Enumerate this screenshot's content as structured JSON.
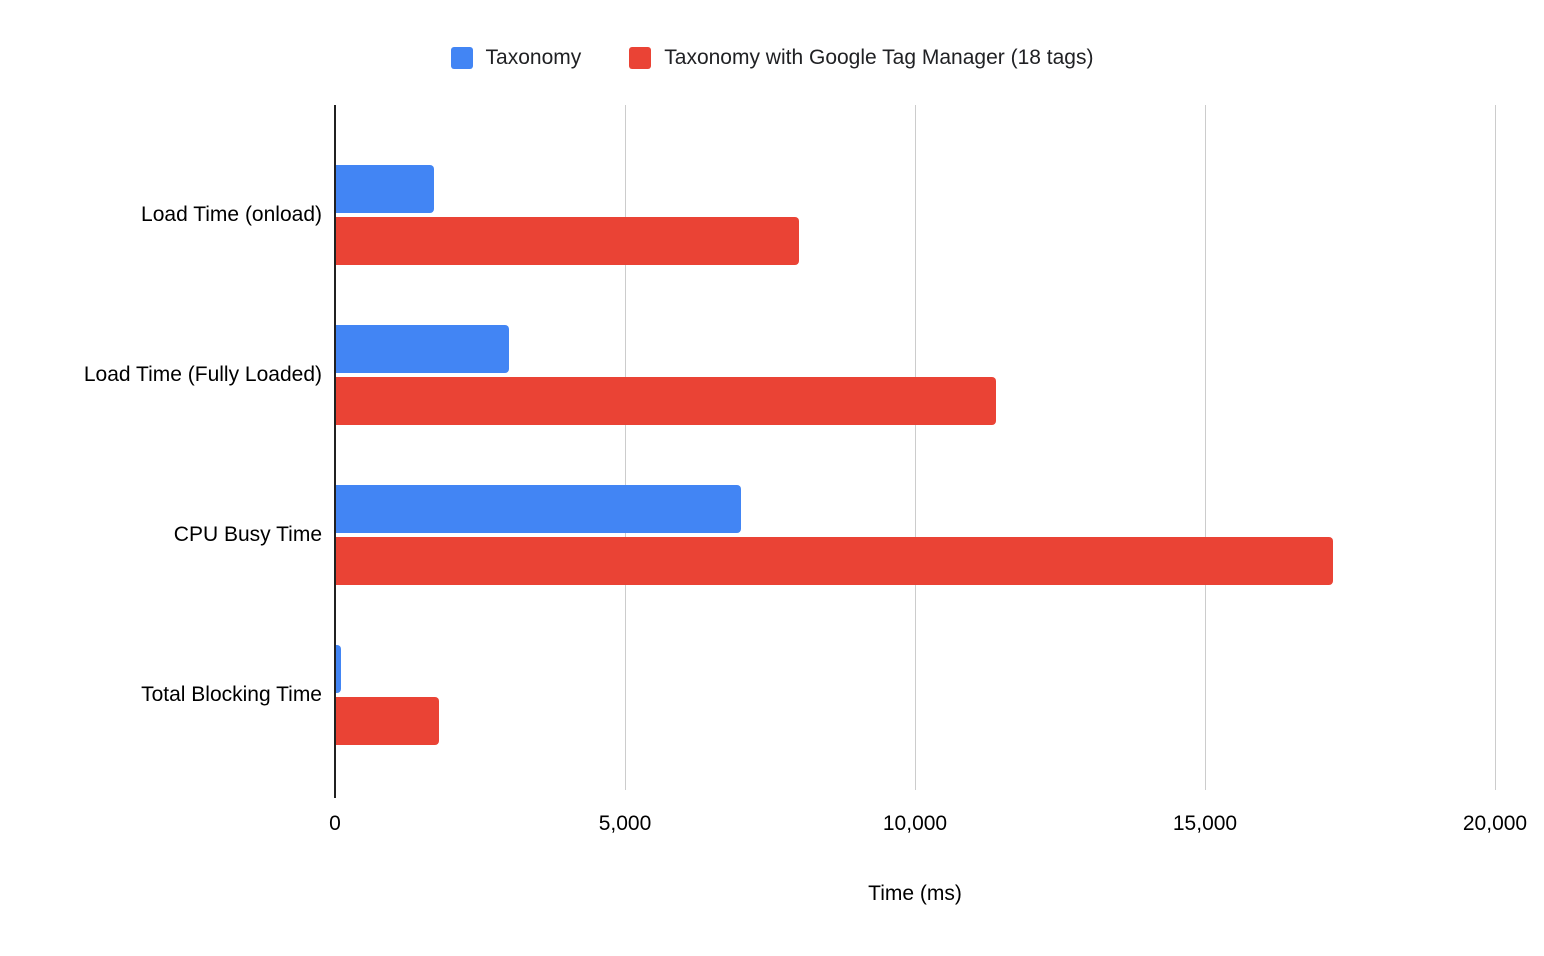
{
  "chart_data": {
    "type": "bar",
    "orientation": "horizontal",
    "title": "",
    "xlabel": "Time (ms)",
    "ylabel": "",
    "xlim": [
      0,
      20000
    ],
    "grid": true,
    "legend_position": "top",
    "categories": [
      "Load Time (onload)",
      "Load Time (Fully Loaded)",
      "CPU Busy Time",
      "Total Blocking Time"
    ],
    "series": [
      {
        "name": "Taxonomy",
        "color": "#4285F4",
        "values": [
          1700,
          3000,
          7000,
          100
        ]
      },
      {
        "name": "Taxonomy with Google Tag Manager (18 tags)",
        "color": "#EA4335",
        "values": [
          8000,
          11400,
          17200,
          1800
        ]
      }
    ],
    "xticks": {
      "values": [
        0,
        5000,
        10000,
        15000,
        20000
      ],
      "labels": [
        "0",
        "5,000",
        "10,000",
        "15,000",
        "20,000"
      ]
    }
  }
}
